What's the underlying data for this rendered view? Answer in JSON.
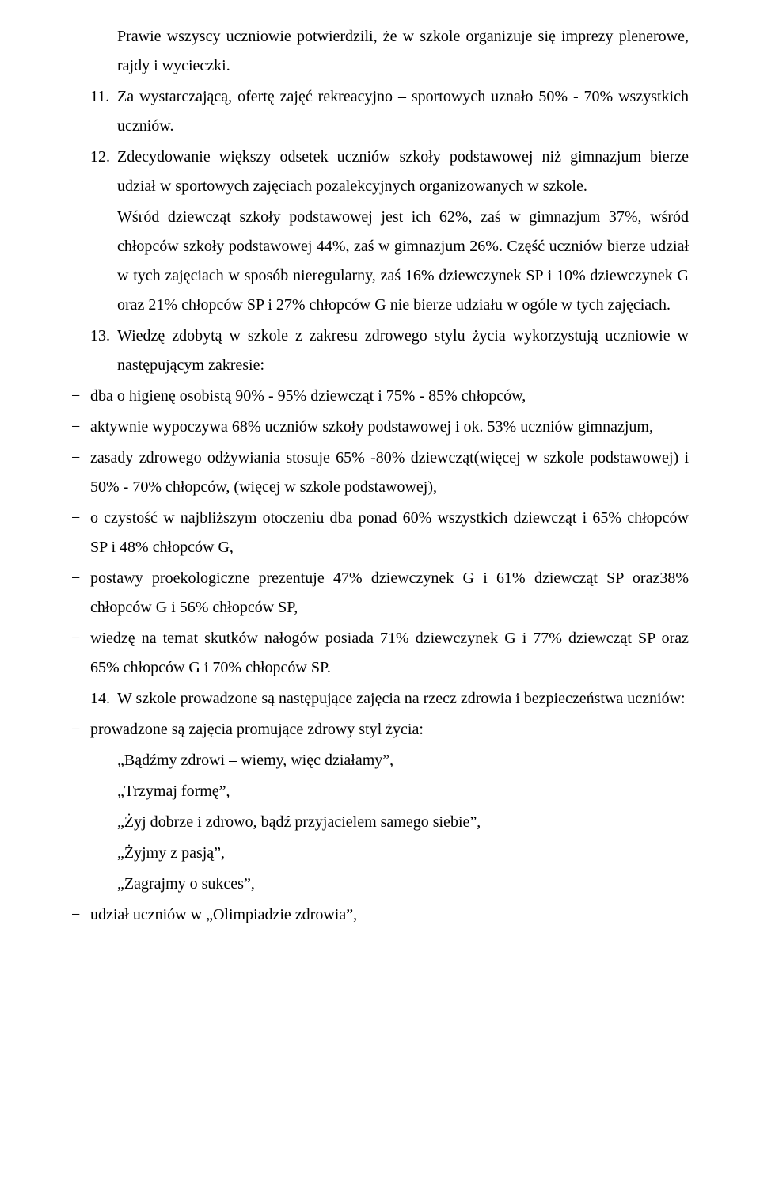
{
  "items": {
    "cont10": "Prawie wszyscy uczniowie potwierdzili, że w szkole organizuje się imprezy plenerowe, rajdy i wycieczki.",
    "n11": "11.",
    "t11": "Za wystarczającą, ofertę zajęć rekreacyjno – sportowych uznało 50% - 70% wszystkich uczniów.",
    "n12": "12.",
    "t12a": "Zdecydowanie większy odsetek uczniów szkoły podstawowej niż gimnazjum bierze udział w sportowych zajęciach pozalekcyjnych organizowanych w szkole.",
    "t12b": "Wśród dziewcząt szkoły podstawowej jest ich 62%, zaś w gimnazjum 37%, wśród chłopców szkoły podstawowej 44%, zaś w gimnazjum 26%. Część uczniów bierze udział w tych zajęciach w sposób nieregularny, zaś 16% dziewczynek SP i 10% dziewczynek G oraz 21% chłopców SP i 27% chłopców G nie bierze udziału w ogóle w tych zajęciach.",
    "n13": "13.",
    "t13": "Wiedzę zdobytą w szkole z zakresu zdrowego stylu życia wykorzystują uczniowie w następującym zakresie:",
    "d13_1": "dba o higienę osobistą  90% - 95% dziewcząt i 75% - 85% chłopców,",
    "d13_2": "aktywnie wypoczywa  68% uczniów szkoły podstawowej i ok. 53% uczniów gimnazjum,",
    "d13_3": "zasady zdrowego odżywiania stosuje 65% -80% dziewcząt(więcej w szkole podstawowej) i 50% - 70% chłopców, (więcej w szkole podstawowej),",
    "d13_4": " o czystość w najbliższym otoczeniu dba ponad 60% wszystkich dziewcząt i 65% chłopców SP i 48% chłopców G,",
    "d13_5": "postawy proekologiczne prezentuje 47% dziewczynek G i  61% dziewcząt SP oraz38% chłopców G i 56% chłopców SP,",
    "d13_6": "wiedzę na temat skutków nałogów posiada 71% dziewczynek G i 77% dziewcząt SP oraz 65% chłopców G i 70% chłopców SP.",
    "n14": "14.",
    "t14": "W szkole prowadzone są następujące zajęcia na rzecz zdrowia i bezpieczeństwa uczniów:",
    "d14_1": "prowadzone są zajęcia promujące zdrowy styl życia:",
    "s14_1": "„Bądźmy zdrowi – wiemy, więc działamy”,",
    "s14_2": "„Trzymaj formę”,",
    "s14_3": "„Żyj dobrze i zdrowo, bądź przyjacielem samego siebie”,",
    "s14_4": "„Żyjmy z pasją”,",
    "s14_5": "„Zagrajmy o sukces”,",
    "d14_2": " udział uczniów w „Olimpiadzie zdrowia”,"
  },
  "dash": "−"
}
